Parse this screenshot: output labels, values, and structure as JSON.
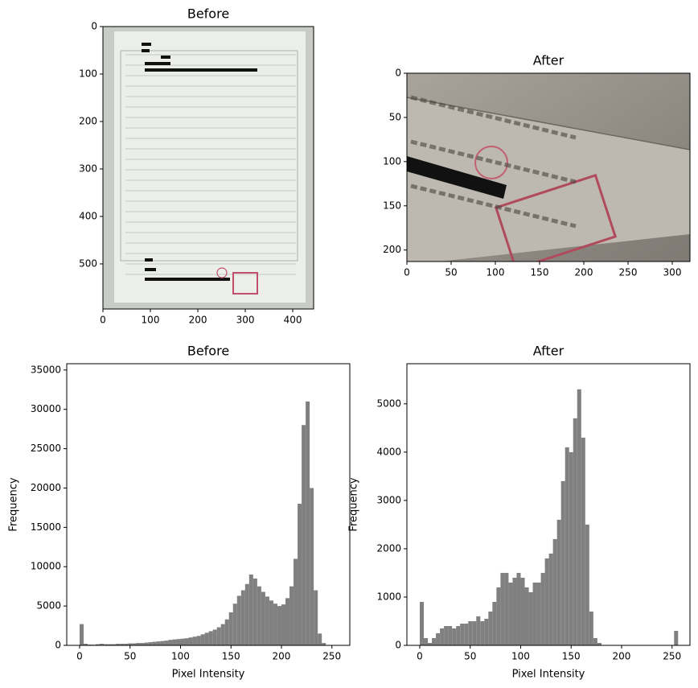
{
  "chart_data": [
    {
      "type": "image",
      "title": "Before",
      "xlim": [
        0,
        444
      ],
      "ylim": [
        595,
        0
      ],
      "xticks": [
        0,
        100,
        200,
        300,
        400
      ],
      "yticks": [
        0,
        100,
        200,
        300,
        400,
        500
      ]
    },
    {
      "type": "image",
      "title": "After",
      "xlim": [
        0,
        320
      ],
      "ylim": [
        213,
        0
      ],
      "xticks": [
        0,
        50,
        100,
        150,
        200,
        250,
        300
      ],
      "yticks": [
        0,
        50,
        100,
        150,
        200
      ]
    },
    {
      "type": "histogram",
      "title": "Before",
      "x_label": "Pixel Intensity",
      "y_label": "Frequency",
      "color": "#808080",
      "xlim": [
        -12.75,
        267.75
      ],
      "ylim": [
        0,
        35800
      ],
      "xticks": [
        0,
        50,
        100,
        150,
        200,
        250
      ],
      "yticks": [
        0,
        5000,
        10000,
        15000,
        20000,
        25000,
        30000,
        35000
      ],
      "bins": [
        0,
        4,
        8,
        12,
        16,
        20,
        24,
        28,
        32,
        36,
        40,
        44,
        48,
        52,
        56,
        60,
        64,
        68,
        72,
        76,
        80,
        84,
        88,
        92,
        96,
        100,
        104,
        108,
        112,
        116,
        120,
        124,
        128,
        132,
        136,
        140,
        144,
        148,
        152,
        156,
        160,
        164,
        168,
        172,
        176,
        180,
        184,
        188,
        192,
        196,
        200,
        204,
        208,
        212,
        216,
        220,
        224,
        228,
        232,
        236,
        240,
        244,
        248,
        252,
        256
      ],
      "values": [
        2700,
        200,
        100,
        80,
        150,
        200,
        150,
        150,
        150,
        200,
        200,
        200,
        250,
        250,
        300,
        300,
        350,
        400,
        450,
        500,
        550,
        600,
        700,
        750,
        800,
        850,
        900,
        1000,
        1100,
        1200,
        1400,
        1600,
        1800,
        2000,
        2300,
        2700,
        3300,
        4200,
        5300,
        6300,
        7000,
        7800,
        9000,
        8500,
        7500,
        6800,
        6200,
        5700,
        5300,
        5000,
        5200,
        6000,
        7500,
        11000,
        18000,
        28000,
        31000,
        20000,
        7000,
        1500,
        300,
        50,
        0,
        0
      ]
    },
    {
      "type": "histogram",
      "title": "After",
      "x_label": "Pixel Intensity",
      "y_label": "Frequency",
      "color": "#808080",
      "xlim": [
        -12.75,
        267.75
      ],
      "ylim": [
        0,
        5830
      ],
      "xticks": [
        0,
        50,
        100,
        150,
        200,
        250
      ],
      "yticks": [
        0,
        1000,
        2000,
        3000,
        4000,
        5000
      ],
      "bins": [
        0,
        4,
        8,
        12,
        16,
        20,
        24,
        28,
        32,
        36,
        40,
        44,
        48,
        52,
        56,
        60,
        64,
        68,
        72,
        76,
        80,
        84,
        88,
        92,
        96,
        100,
        104,
        108,
        112,
        116,
        120,
        124,
        128,
        132,
        136,
        140,
        144,
        148,
        152,
        156,
        160,
        164,
        168,
        172,
        176,
        180,
        184,
        188,
        192,
        196,
        200,
        204,
        208,
        212,
        216,
        220,
        224,
        228,
        232,
        236,
        240,
        244,
        248,
        252,
        256
      ],
      "values": [
        900,
        150,
        50,
        150,
        250,
        350,
        400,
        400,
        350,
        400,
        450,
        450,
        500,
        500,
        600,
        500,
        550,
        700,
        900,
        1200,
        1500,
        1500,
        1300,
        1400,
        1500,
        1400,
        1200,
        1100,
        1300,
        1300,
        1500,
        1800,
        1900,
        2200,
        2600,
        3400,
        4100,
        4000,
        4700,
        5300,
        4300,
        2500,
        700,
        150,
        50,
        0,
        0,
        0,
        0,
        0,
        0,
        0,
        0,
        0,
        0,
        0,
        0,
        0,
        0,
        0,
        0,
        0,
        0,
        300
      ]
    }
  ]
}
